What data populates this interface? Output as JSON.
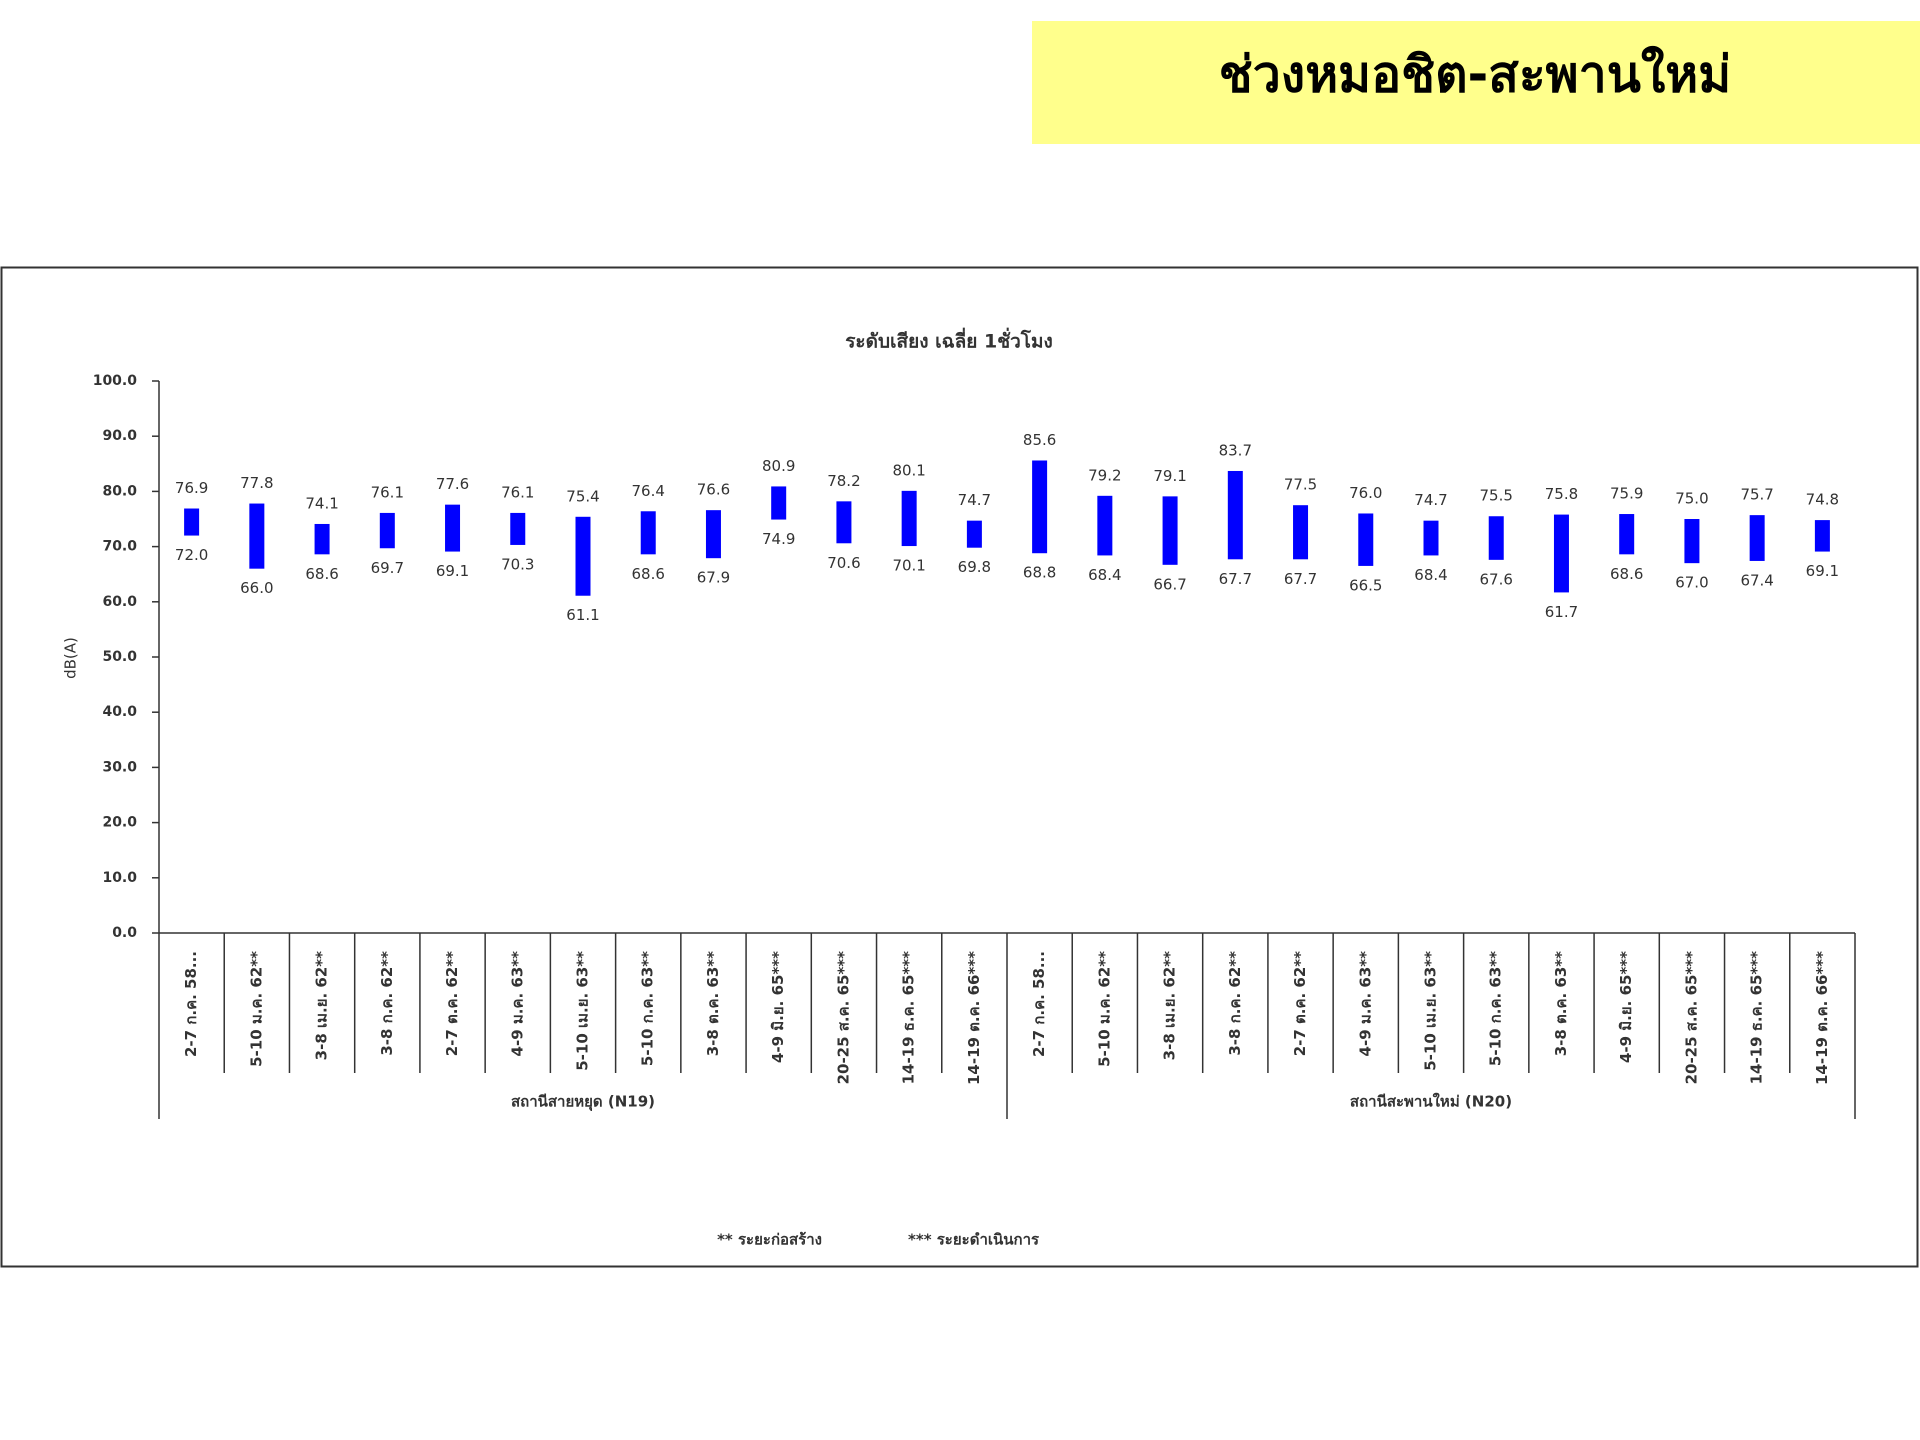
{
  "header": {
    "title": "ช่วงหมอชิต-สะพานใหม่"
  },
  "chart_data": {
    "type": "floating_bar",
    "title": "ระดับเสียง เฉลี่ย 1ชั่วโมง",
    "y_label": "dB(A)",
    "color": "#0000ff",
    "ylim": [
      0,
      100
    ],
    "yticks": [
      {
        "value": 0,
        "label": "0.0"
      },
      {
        "value": 10,
        "label": "10.0"
      },
      {
        "value": 20,
        "label": "20.0"
      },
      {
        "value": 30,
        "label": "30.0"
      },
      {
        "value": 40,
        "label": "40.0"
      },
      {
        "value": 50,
        "label": "50.0"
      },
      {
        "value": 60,
        "label": "60.0"
      },
      {
        "value": 70,
        "label": "70.0"
      },
      {
        "value": 80,
        "label": "80.0"
      },
      {
        "value": 90,
        "label": "90.0"
      },
      {
        "value": 100,
        "label": "100.0"
      }
    ],
    "groups": [
      {
        "label": "สถานีสายหยุด (N19)",
        "categories": [
          "2-7 ก.ค. 58...",
          "5-10 ม.ค. 62**",
          "3-8 เม.ย. 62**",
          "3-8 ก.ค. 62**",
          "2-7 ต.ค. 62**",
          "4-9 ม.ค. 63**",
          "5-10 เม.ย. 63**",
          "5-10 ก.ค. 63**",
          "3-8 ต.ค. 63**",
          "4-9 มิ.ย. 65***",
          "20-25 ส.ค. 65***",
          "14-19 ธ.ค. 65***",
          "14-19 ต.ค. 66***"
        ],
        "high": {
          "values": [
            76.9,
            77.8,
            74.1,
            76.1,
            77.6,
            76.1,
            75.4,
            76.4,
            76.6,
            80.9,
            78.2,
            80.1,
            74.7
          ],
          "value_labels": [
            "76.9",
            "77.8",
            "74.1",
            "76.1",
            "77.6",
            "76.1",
            "75.4",
            "76.4",
            "76.6",
            "80.9",
            "78.2",
            "80.1",
            "74.7"
          ]
        },
        "low": {
          "values": [
            72,
            66,
            68.6,
            69.7,
            69.1,
            70.3,
            61.1,
            68.6,
            67.9,
            74.9,
            70.6,
            70.1,
            69.8
          ],
          "value_labels": [
            "72.0",
            "66.0",
            "68.6",
            "69.7",
            "69.1",
            "70.3",
            "61.1",
            "68.6",
            "67.9",
            "74.9",
            "70.6",
            "70.1",
            "69.8"
          ]
        }
      },
      {
        "label": "สถานีสะพานใหม่ (N20)",
        "categories": [
          "2-7 ก.ค. 58...",
          "5-10 ม.ค. 62**",
          "3-8 เม.ย. 62**",
          "3-8 ก.ค. 62**",
          "2-7 ต.ค. 62**",
          "4-9 ม.ค. 63**",
          "5-10 เม.ย. 63**",
          "5-10 ก.ค. 63**",
          "3-8 ต.ค. 63**",
          "4-9 มิ.ย. 65***",
          "20-25 ส.ค. 65***",
          "14-19 ธ.ค. 65***",
          "14-19 ต.ค. 66***"
        ],
        "high": {
          "values": [
            85.6,
            79.2,
            79.1,
            83.7,
            77.5,
            76,
            74.7,
            75.5,
            75.8,
            75.9,
            75,
            75.7,
            74.8
          ],
          "value_labels": [
            "85.6",
            "79.2",
            "79.1",
            "83.7",
            "77.5",
            "76.0",
            "74.7",
            "75.5",
            "75.8",
            "75.9",
            "75.0",
            "75.7",
            "74.8"
          ]
        },
        "low": {
          "values": [
            68.8,
            68.4,
            66.7,
            67.7,
            67.7,
            66.5,
            68.4,
            67.6,
            61.7,
            68.6,
            67,
            67.4,
            69.1
          ],
          "value_labels": [
            "68.8",
            "68.4",
            "66.7",
            "67.7",
            "67.7",
            "66.5",
            "68.4",
            "67.6",
            "61.7",
            "68.6",
            "67.0",
            "67.4",
            "69.1"
          ]
        }
      }
    ],
    "footnotes": [
      "** ระยะก่อสร้าง",
      "*** ระยะดำเนินการ"
    ]
  }
}
